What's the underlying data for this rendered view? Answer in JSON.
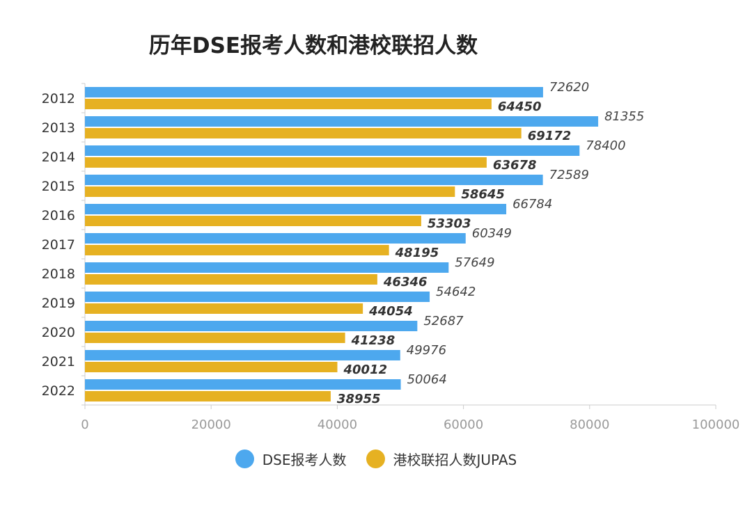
{
  "colors": {
    "dse": "#4DA8EE",
    "jupas": "#E6B122",
    "axis": "#cccccc",
    "text": "#333333",
    "tick": "#999999"
  },
  "chart_data": {
    "type": "bar",
    "orientation": "horizontal",
    "title": "历年DSE报考人数和港校联招人数",
    "categories": [
      "2012",
      "2013",
      "2014",
      "2015",
      "2016",
      "2017",
      "2018",
      "2019",
      "2020",
      "2021",
      "2022"
    ],
    "series": [
      {
        "name": "DSE报考人数",
        "values": [
          72620,
          81355,
          78400,
          72589,
          66784,
          60349,
          57649,
          54642,
          52687,
          49976,
          50064
        ]
      },
      {
        "name": "港校联招人数JUPAS",
        "values": [
          64450,
          69172,
          63678,
          58645,
          53303,
          48195,
          46346,
          44054,
          41238,
          40012,
          38955
        ]
      }
    ],
    "xlim": [
      0,
      100000
    ],
    "xticks": [
      "0",
      "20000",
      "40000",
      "60000",
      "80000",
      "100000"
    ],
    "grid": false,
    "legend": "bottom-center"
  }
}
